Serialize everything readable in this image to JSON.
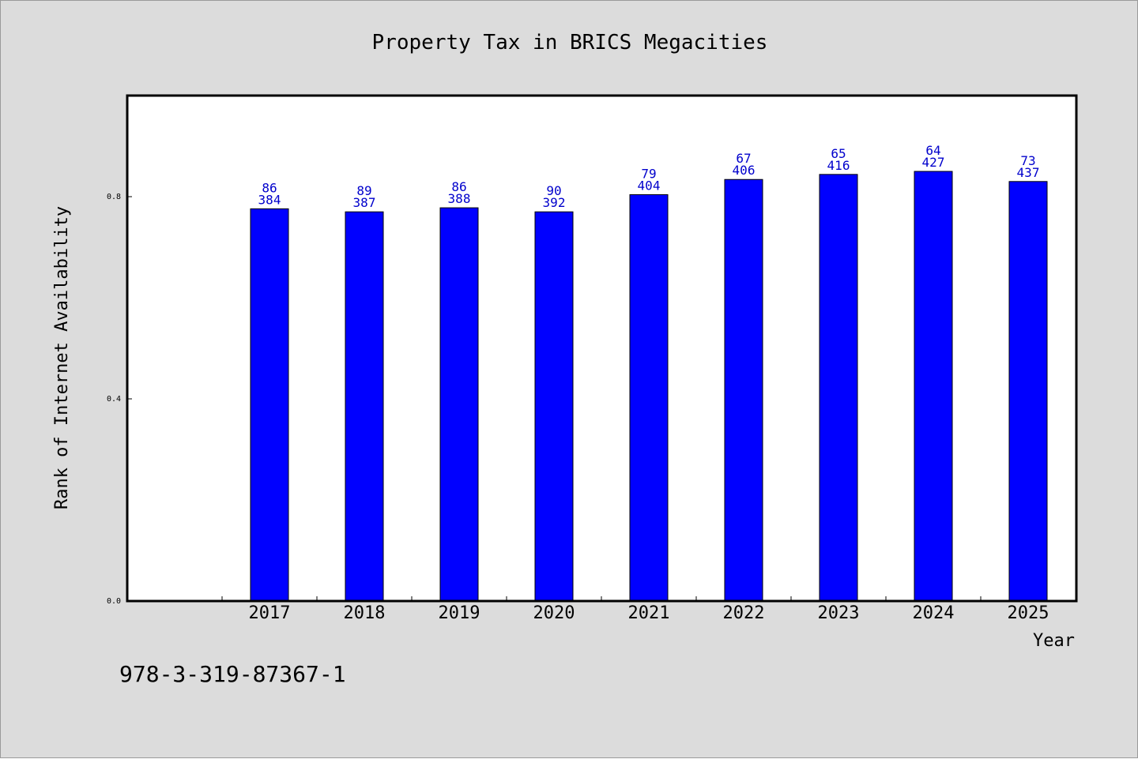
{
  "chart_data": {
    "type": "bar",
    "title": "Property Tax in BRICS Megacities",
    "xlabel": "Year",
    "ylabel": "Rank of Internet Availability",
    "categories": [
      "2017",
      "2018",
      "2019",
      "2020",
      "2021",
      "2022",
      "2023",
      "2024",
      "2025"
    ],
    "series": [
      {
        "values": [
          0.776,
          0.77,
          0.778,
          0.77,
          0.804,
          0.834,
          0.844,
          0.85,
          0.83
        ],
        "color": "#0000ff"
      }
    ],
    "data_labels": [
      [
        "86",
        "384"
      ],
      [
        "89",
        "387"
      ],
      [
        "86",
        "388"
      ],
      [
        "90",
        "392"
      ],
      [
        "79",
        "404"
      ],
      [
        "67",
        "406"
      ],
      [
        "65",
        "416"
      ],
      [
        "64",
        "427"
      ],
      [
        "73",
        "437"
      ]
    ],
    "ylim": [
      0,
      1.0
    ],
    "yticks": [
      0.0,
      0.4,
      0.8
    ],
    "ytick_labels": [
      "0.0",
      "0.4",
      "0.8"
    ],
    "grid": false,
    "legend": "none"
  },
  "footer_text": "978-3-319-87367-1",
  "colors": {
    "background": "#dcdcdc",
    "plot_background": "#ffffff",
    "bar": "#0000ff",
    "data_label": "#0000cc"
  }
}
